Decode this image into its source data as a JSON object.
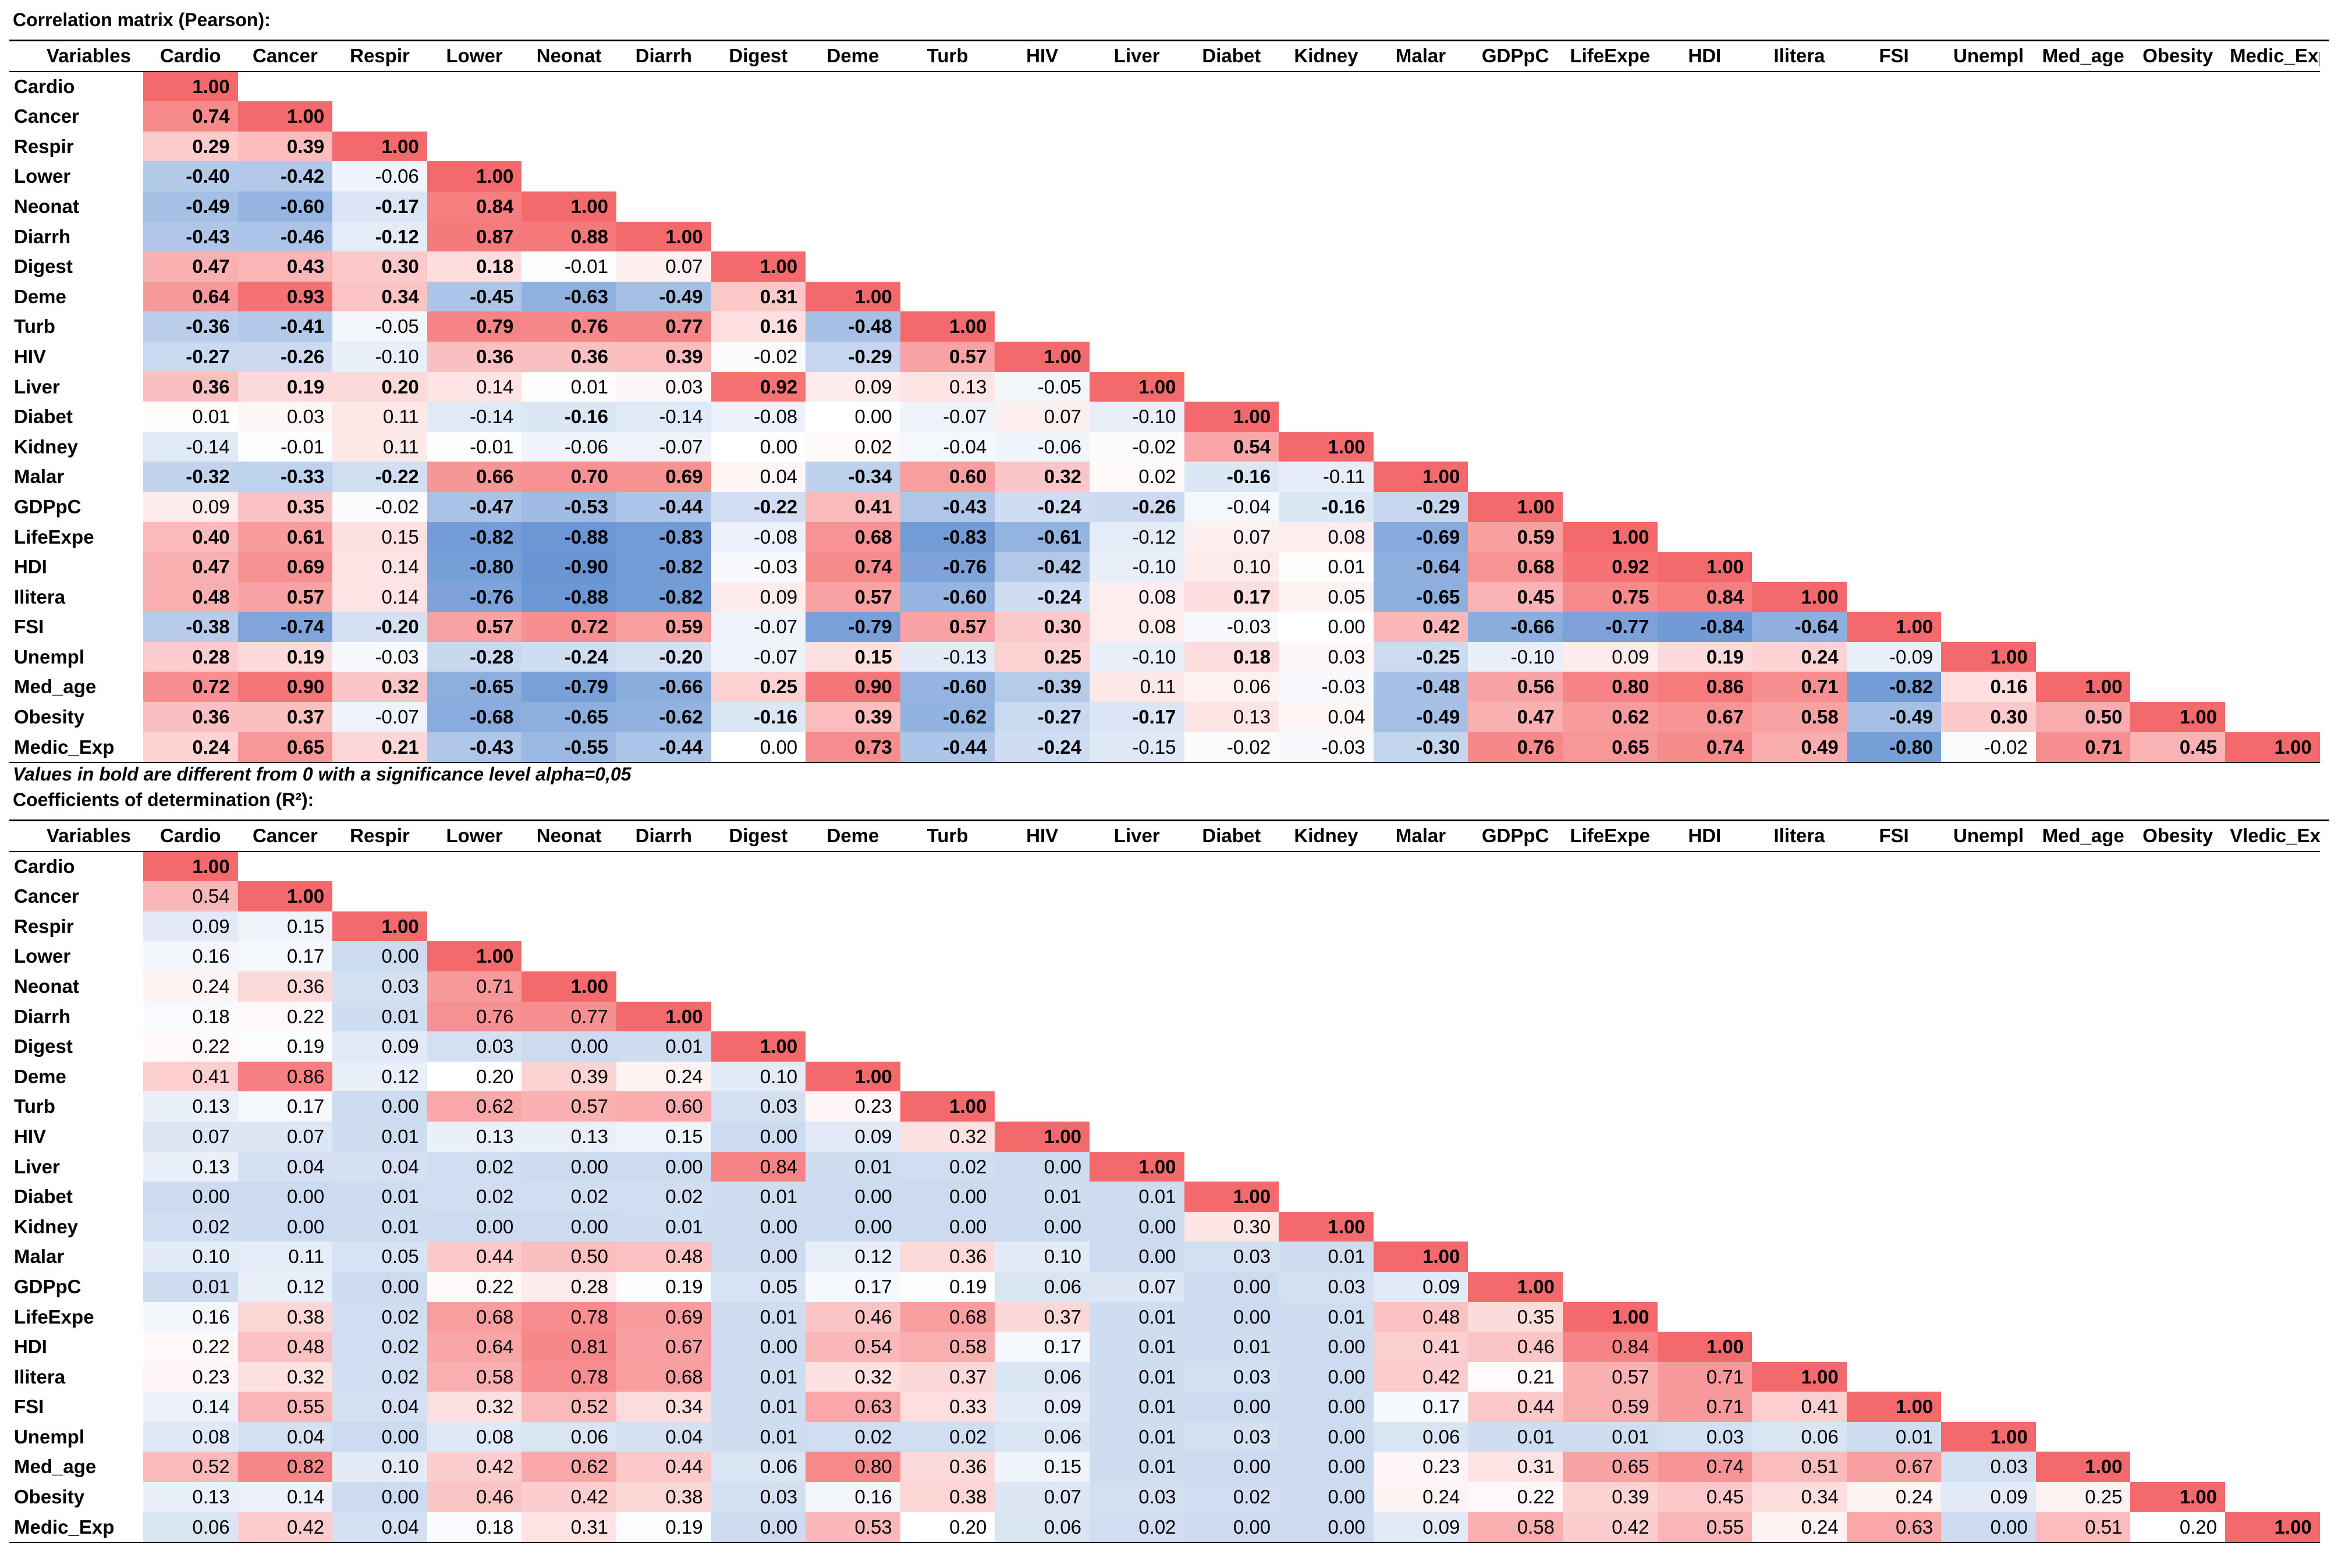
{
  "pearson_title": "Correlation matrix (Pearson):",
  "r2_title": "Coefficients of determination (R²):",
  "significance_note": "Values in bold are different from 0 with a significance level alpha=0,05",
  "header_label": "Variables",
  "colors": {
    "positive": "#f4696b",
    "negative": "#5b8bd0",
    "neutral": "#ffffff"
  },
  "chart_data": [
    {
      "type": "heatmap",
      "title": "Correlation matrix (Pearson):",
      "variables": [
        "Cardio",
        "Cancer",
        "Respir",
        "Lower",
        "Neonat",
        "Diarrh",
        "Digest",
        "Deme",
        "Turb",
        "HIV",
        "Liver",
        "Diabet",
        "Kidney",
        "Malar",
        "GDPpC",
        "LifeExpe",
        "HDI",
        "Ilitera",
        "FSI",
        "Unempl",
        "Med_age",
        "Obesity",
        "Medic_Exp"
      ],
      "value_range": [
        -1,
        1
      ],
      "values": [
        [
          1.0
        ],
        [
          0.74,
          1.0
        ],
        [
          0.29,
          0.39,
          1.0
        ],
        [
          -0.4,
          -0.42,
          -0.06,
          1.0
        ],
        [
          -0.49,
          -0.6,
          -0.17,
          0.84,
          1.0
        ],
        [
          -0.43,
          -0.46,
          -0.12,
          0.87,
          0.88,
          1.0
        ],
        [
          0.47,
          0.43,
          0.3,
          0.18,
          -0.01,
          0.07,
          1.0
        ],
        [
          0.64,
          0.93,
          0.34,
          -0.45,
          -0.63,
          -0.49,
          0.31,
          1.0
        ],
        [
          -0.36,
          -0.41,
          -0.05,
          0.79,
          0.76,
          0.77,
          0.16,
          -0.48,
          1.0
        ],
        [
          -0.27,
          -0.26,
          -0.1,
          0.36,
          0.36,
          0.39,
          -0.02,
          -0.29,
          0.57,
          1.0
        ],
        [
          0.36,
          0.19,
          0.2,
          0.14,
          0.01,
          0.03,
          0.92,
          0.09,
          0.13,
          -0.05,
          1.0
        ],
        [
          0.01,
          0.03,
          0.11,
          -0.14,
          -0.16,
          -0.14,
          -0.08,
          0.0,
          -0.07,
          0.07,
          -0.1,
          1.0
        ],
        [
          -0.14,
          -0.01,
          0.11,
          -0.01,
          -0.06,
          -0.07,
          0.0,
          0.02,
          -0.04,
          -0.06,
          -0.02,
          0.54,
          1.0
        ],
        [
          -0.32,
          -0.33,
          -0.22,
          0.66,
          0.7,
          0.69,
          0.04,
          -0.34,
          0.6,
          0.32,
          0.02,
          -0.16,
          -0.11,
          1.0
        ],
        [
          0.09,
          0.35,
          -0.02,
          -0.47,
          -0.53,
          -0.44,
          -0.22,
          0.41,
          -0.43,
          -0.24,
          -0.26,
          -0.04,
          -0.16,
          -0.29,
          1.0
        ],
        [
          0.4,
          0.61,
          0.15,
          -0.82,
          -0.88,
          -0.83,
          -0.08,
          0.68,
          -0.83,
          -0.61,
          -0.12,
          0.07,
          0.08,
          -0.69,
          0.59,
          1.0
        ],
        [
          0.47,
          0.69,
          0.14,
          -0.8,
          -0.9,
          -0.82,
          -0.03,
          0.74,
          -0.76,
          -0.42,
          -0.1,
          0.1,
          0.01,
          -0.64,
          0.68,
          0.92,
          1.0
        ],
        [
          0.48,
          0.57,
          0.14,
          -0.76,
          -0.88,
          -0.82,
          0.09,
          0.57,
          -0.6,
          -0.24,
          0.08,
          0.17,
          0.05,
          -0.65,
          0.45,
          0.75,
          0.84,
          1.0
        ],
        [
          -0.38,
          -0.74,
          -0.2,
          0.57,
          0.72,
          0.59,
          -0.07,
          -0.79,
          0.57,
          0.3,
          0.08,
          -0.03,
          0.0,
          0.42,
          -0.66,
          -0.77,
          -0.84,
          -0.64,
          1.0
        ],
        [
          0.28,
          0.19,
          -0.03,
          -0.28,
          -0.24,
          -0.2,
          -0.07,
          0.15,
          -0.13,
          0.25,
          -0.1,
          0.18,
          0.03,
          -0.25,
          -0.1,
          0.09,
          0.19,
          0.24,
          -0.09,
          1.0
        ],
        [
          0.72,
          0.9,
          0.32,
          -0.65,
          -0.79,
          -0.66,
          0.25,
          0.9,
          -0.6,
          -0.39,
          0.11,
          0.06,
          -0.03,
          -0.48,
          0.56,
          0.8,
          0.86,
          0.71,
          -0.82,
          0.16,
          1.0
        ],
        [
          0.36,
          0.37,
          -0.07,
          -0.68,
          -0.65,
          -0.62,
          -0.16,
          0.39,
          -0.62,
          -0.27,
          -0.17,
          0.13,
          0.04,
          -0.49,
          0.47,
          0.62,
          0.67,
          0.58,
          -0.49,
          0.3,
          0.5,
          1.0
        ],
        [
          0.24,
          0.65,
          0.21,
          -0.43,
          -0.55,
          -0.44,
          0.0,
          0.73,
          -0.44,
          -0.24,
          -0.15,
          -0.02,
          -0.03,
          -0.3,
          0.76,
          0.65,
          0.74,
          0.49,
          -0.8,
          -0.02,
          0.71,
          0.45,
          1.0
        ]
      ],
      "bold": [
        [
          1
        ],
        [
          1,
          1
        ],
        [
          1,
          1,
          1
        ],
        [
          1,
          1,
          0,
          1
        ],
        [
          1,
          1,
          1,
          1,
          1
        ],
        [
          1,
          1,
          1,
          1,
          1,
          1
        ],
        [
          1,
          1,
          1,
          1,
          0,
          0,
          1
        ],
        [
          1,
          1,
          1,
          1,
          1,
          1,
          1,
          1
        ],
        [
          1,
          1,
          0,
          1,
          1,
          1,
          1,
          1,
          1
        ],
        [
          1,
          1,
          0,
          1,
          1,
          1,
          0,
          1,
          1,
          1
        ],
        [
          1,
          1,
          1,
          0,
          0,
          0,
          1,
          0,
          0,
          0,
          1
        ],
        [
          0,
          0,
          0,
          0,
          1,
          0,
          0,
          0,
          0,
          0,
          0,
          1
        ],
        [
          0,
          0,
          0,
          0,
          0,
          0,
          0,
          0,
          0,
          0,
          0,
          1,
          1
        ],
        [
          1,
          1,
          1,
          1,
          1,
          1,
          0,
          1,
          1,
          1,
          0,
          1,
          0,
          1
        ],
        [
          0,
          1,
          0,
          1,
          1,
          1,
          1,
          1,
          1,
          1,
          1,
          0,
          1,
          1,
          1
        ],
        [
          1,
          1,
          0,
          1,
          1,
          1,
          0,
          1,
          1,
          1,
          0,
          0,
          0,
          1,
          1,
          1
        ],
        [
          1,
          1,
          0,
          1,
          1,
          1,
          0,
          1,
          1,
          1,
          0,
          0,
          0,
          1,
          1,
          1,
          1
        ],
        [
          1,
          1,
          0,
          1,
          1,
          1,
          0,
          1,
          1,
          1,
          0,
          1,
          0,
          1,
          1,
          1,
          1,
          1
        ],
        [
          1,
          1,
          1,
          1,
          1,
          1,
          0,
          1,
          1,
          1,
          0,
          0,
          0,
          1,
          1,
          1,
          1,
          1,
          1
        ],
        [
          1,
          1,
          0,
          1,
          1,
          1,
          0,
          1,
          0,
          1,
          0,
          1,
          0,
          1,
          0,
          0,
          1,
          1,
          0,
          1
        ],
        [
          1,
          1,
          1,
          1,
          1,
          1,
          1,
          1,
          1,
          1,
          0,
          0,
          0,
          1,
          1,
          1,
          1,
          1,
          1,
          1,
          1
        ],
        [
          1,
          1,
          0,
          1,
          1,
          1,
          1,
          1,
          1,
          1,
          1,
          0,
          0,
          1,
          1,
          1,
          1,
          1,
          1,
          1,
          1,
          1
        ],
        [
          1,
          1,
          1,
          1,
          1,
          1,
          0,
          1,
          1,
          1,
          0,
          0,
          0,
          1,
          1,
          1,
          1,
          1,
          1,
          0,
          1,
          1,
          1
        ]
      ]
    },
    {
      "type": "heatmap",
      "title": "Coefficients of determination (R²):",
      "variables": [
        "Cardio",
        "Cancer",
        "Respir",
        "Lower",
        "Neonat",
        "Diarrh",
        "Digest",
        "Deme",
        "Turb",
        "HIV",
        "Liver",
        "Diabet",
        "Kidney",
        "Malar",
        "GDPpC",
        "LifeExpe",
        "HDI",
        "Ilitera",
        "FSI",
        "Unempl",
        "Med_age",
        "Obesity",
        "Medic_Exp"
      ],
      "header_variables": [
        "Cardio",
        "Cancer",
        "Respir",
        "Lower",
        "Neonat",
        "Diarrh",
        "Digest",
        "Deme",
        "Turb",
        "HIV",
        "Liver",
        "Diabet",
        "Kidney",
        "Malar",
        "GDPpC",
        "LifeExpe",
        "HDI",
        "Ilitera",
        "FSI",
        "Unempl",
        "Med_age",
        "Obesity",
        "Vledic_Exp"
      ],
      "value_range": [
        0,
        1
      ],
      "values": [
        [
          1.0
        ],
        [
          0.54,
          1.0
        ],
        [
          0.09,
          0.15,
          1.0
        ],
        [
          0.16,
          0.17,
          0.0,
          1.0
        ],
        [
          0.24,
          0.36,
          0.03,
          0.71,
          1.0
        ],
        [
          0.18,
          0.22,
          0.01,
          0.76,
          0.77,
          1.0
        ],
        [
          0.22,
          0.19,
          0.09,
          0.03,
          0.0,
          0.01,
          1.0
        ],
        [
          0.41,
          0.86,
          0.12,
          0.2,
          0.39,
          0.24,
          0.1,
          1.0
        ],
        [
          0.13,
          0.17,
          0.0,
          0.62,
          0.57,
          0.6,
          0.03,
          0.23,
          1.0
        ],
        [
          0.07,
          0.07,
          0.01,
          0.13,
          0.13,
          0.15,
          0.0,
          0.09,
          0.32,
          1.0
        ],
        [
          0.13,
          0.04,
          0.04,
          0.02,
          0.0,
          0.0,
          0.84,
          0.01,
          0.02,
          0.0,
          1.0
        ],
        [
          0.0,
          0.0,
          0.01,
          0.02,
          0.02,
          0.02,
          0.01,
          0.0,
          0.0,
          0.01,
          0.01,
          1.0
        ],
        [
          0.02,
          0.0,
          0.01,
          0.0,
          0.0,
          0.01,
          0.0,
          0.0,
          0.0,
          0.0,
          0.0,
          0.3,
          1.0
        ],
        [
          0.1,
          0.11,
          0.05,
          0.44,
          0.5,
          0.48,
          0.0,
          0.12,
          0.36,
          0.1,
          0.0,
          0.03,
          0.01,
          1.0
        ],
        [
          0.01,
          0.12,
          0.0,
          0.22,
          0.28,
          0.19,
          0.05,
          0.17,
          0.19,
          0.06,
          0.07,
          0.0,
          0.03,
          0.09,
          1.0
        ],
        [
          0.16,
          0.38,
          0.02,
          0.68,
          0.78,
          0.69,
          0.01,
          0.46,
          0.68,
          0.37,
          0.01,
          0.0,
          0.01,
          0.48,
          0.35,
          1.0
        ],
        [
          0.22,
          0.48,
          0.02,
          0.64,
          0.81,
          0.67,
          0.0,
          0.54,
          0.58,
          0.17,
          0.01,
          0.01,
          0.0,
          0.41,
          0.46,
          0.84,
          1.0
        ],
        [
          0.23,
          0.32,
          0.02,
          0.58,
          0.78,
          0.68,
          0.01,
          0.32,
          0.37,
          0.06,
          0.01,
          0.03,
          0.0,
          0.42,
          0.21,
          0.57,
          0.71,
          1.0
        ],
        [
          0.14,
          0.55,
          0.04,
          0.32,
          0.52,
          0.34,
          0.01,
          0.63,
          0.33,
          0.09,
          0.01,
          0.0,
          0.0,
          0.17,
          0.44,
          0.59,
          0.71,
          0.41,
          1.0
        ],
        [
          0.08,
          0.04,
          0.0,
          0.08,
          0.06,
          0.04,
          0.01,
          0.02,
          0.02,
          0.06,
          0.01,
          0.03,
          0.0,
          0.06,
          0.01,
          0.01,
          0.03,
          0.06,
          0.01,
          1.0
        ],
        [
          0.52,
          0.82,
          0.1,
          0.42,
          0.62,
          0.44,
          0.06,
          0.8,
          0.36,
          0.15,
          0.01,
          0.0,
          0.0,
          0.23,
          0.31,
          0.65,
          0.74,
          0.51,
          0.67,
          0.03,
          1.0
        ],
        [
          0.13,
          0.14,
          0.0,
          0.46,
          0.42,
          0.38,
          0.03,
          0.16,
          0.38,
          0.07,
          0.03,
          0.02,
          0.0,
          0.24,
          0.22,
          0.39,
          0.45,
          0.34,
          0.24,
          0.09,
          0.25,
          1.0
        ],
        [
          0.06,
          0.42,
          0.04,
          0.18,
          0.31,
          0.19,
          0.0,
          0.53,
          0.2,
          0.06,
          0.02,
          0.0,
          0.0,
          0.09,
          0.58,
          0.42,
          0.55,
          0.24,
          0.63,
          0.0,
          0.51,
          0.2,
          1.0
        ]
      ]
    }
  ]
}
